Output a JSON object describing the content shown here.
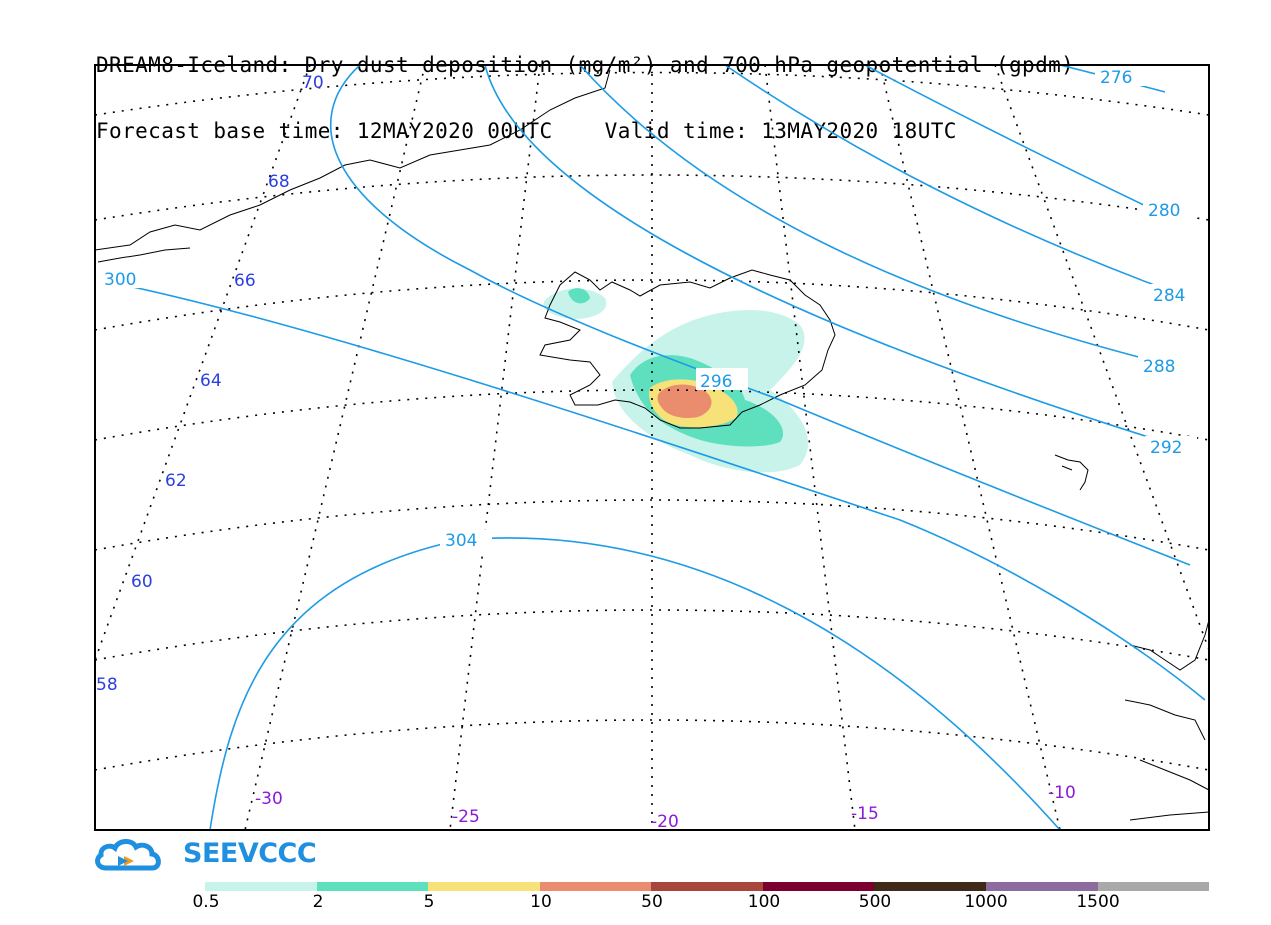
{
  "title": {
    "line1": "DREAM8-Iceland: Dry dust deposition (mg/m²) and 700 hPa geopotential (gpdm)",
    "line2": "Forecast base time: 12MAY2020 00UTC    Valid time: 13MAY2020 18UTC"
  },
  "map": {
    "lat_labels": [
      "70",
      "68",
      "66",
      "64",
      "62",
      "60",
      "58"
    ],
    "lon_labels": [
      "-30",
      "-25",
      "-20",
      "-15",
      "-10"
    ],
    "contour_labels": [
      "276",
      "280",
      "284",
      "288",
      "292",
      "296",
      "300",
      "304"
    ],
    "colors": {
      "graticule": "#000000",
      "contour": "#1e9be6",
      "lat_label": "#2a3fe0",
      "lon_label": "#8a1bd6",
      "coast": "#000000"
    }
  },
  "logo": {
    "text": "SEEVCCC",
    "icon": "cloud-icon"
  },
  "legend": {
    "labels": [
      "0.5",
      "2",
      "5",
      "10",
      "50",
      "100",
      "500",
      "1000",
      "1500"
    ],
    "colors": [
      "#c8f3ea",
      "#5ee0bf",
      "#f7e27a",
      "#e98d6e",
      "#a8453c",
      "#7a0030",
      "#3f2a18",
      "#8e6b9e",
      "#a9a9a9"
    ]
  }
}
